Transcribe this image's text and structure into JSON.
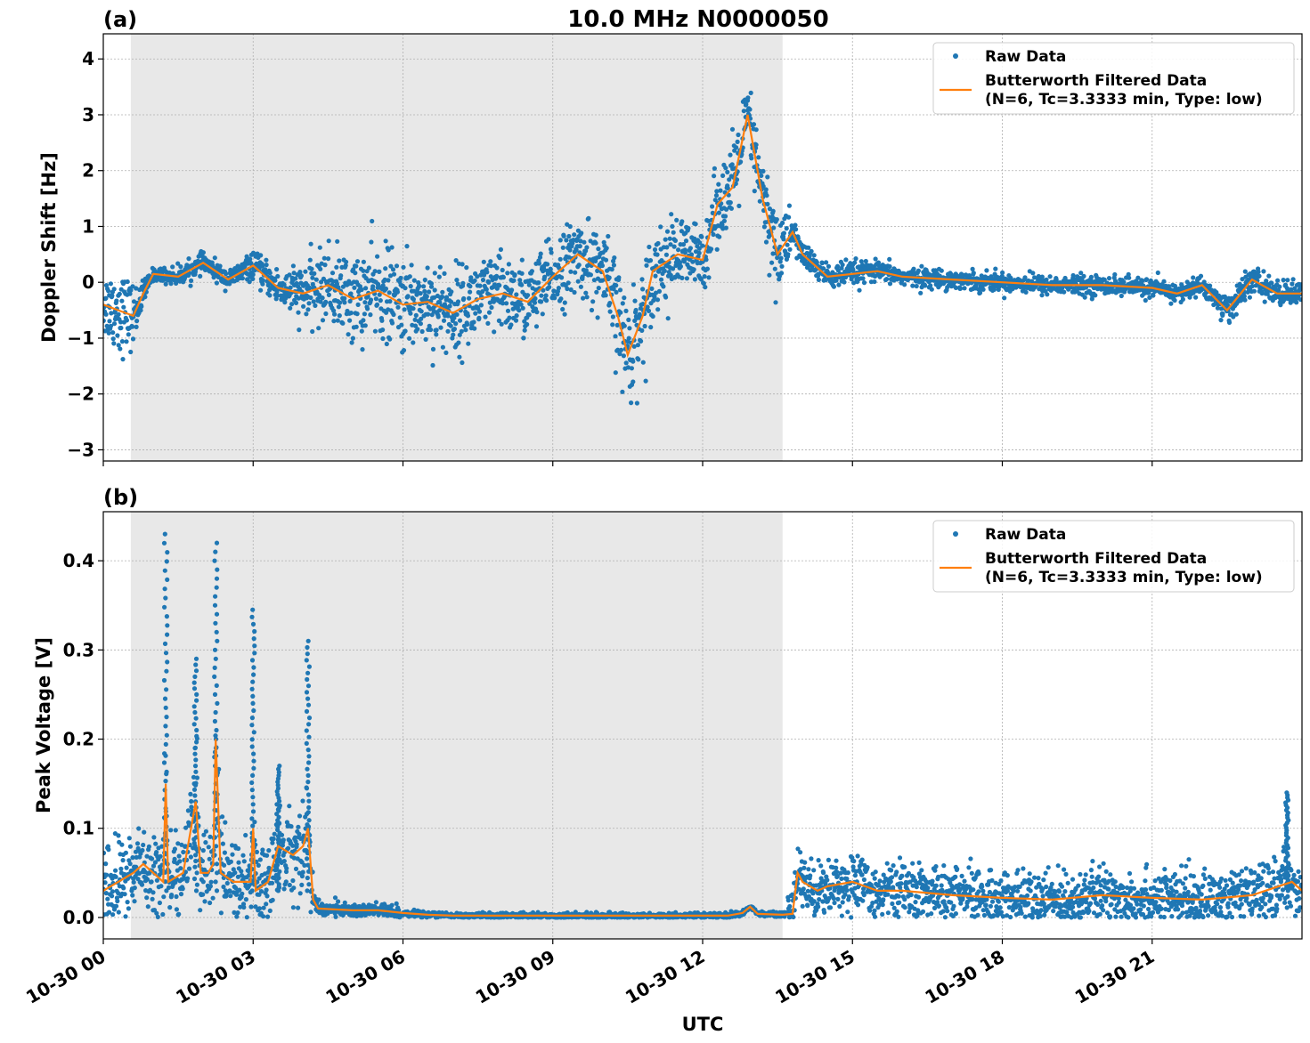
{
  "figure": {
    "title": "10.0 MHz N0000050",
    "xlabel": "UTC",
    "x_tick_labels": [
      "10-30 00",
      "10-30 03",
      "10-30 06",
      "10-30 09",
      "10-30 12",
      "10-30 15",
      "10-30 18",
      "10-30 21"
    ]
  },
  "colors": {
    "raw": "#1f77b4",
    "filtered": "#ff7f0e",
    "shade": "#e8e8e8",
    "grid": "#b0b0b0"
  },
  "chart_data": [
    {
      "type": "scatter",
      "panel_label": "(a)",
      "ylabel": "Doppler Shift [Hz]",
      "x_unit": "hours UTC since 10-30 00:00",
      "xlim": [
        0,
        24
      ],
      "ylim": [
        -3.2,
        4.45
      ],
      "y_ticks": [
        -3,
        -2,
        -1,
        0,
        1,
        2,
        3,
        4
      ],
      "y_tick_labels": [
        "−3",
        "−2",
        "−1",
        "0",
        "1",
        "2",
        "3",
        "4"
      ],
      "shaded_interval_hours": [
        0.55,
        13.6
      ],
      "legend": {
        "placement": "top-right",
        "raw_label": "Raw Data",
        "filtered_label_line1": "Butterworth Filtered Data",
        "filtered_label_line2": "(N=6, Tc=3.3333 min, Type: low)"
      },
      "series": [
        {
          "name": "Butterworth Filtered Data",
          "kind": "line",
          "x": [
            0.0,
            0.3,
            0.6,
            0.8,
            1.0,
            1.5,
            2.0,
            2.5,
            3.0,
            3.5,
            4.0,
            4.5,
            5.0,
            5.5,
            6.0,
            6.5,
            7.0,
            7.5,
            8.0,
            8.5,
            9.0,
            9.5,
            10.0,
            10.3,
            10.5,
            10.8,
            11.0,
            11.5,
            12.0,
            12.3,
            12.6,
            12.9,
            13.2,
            13.5,
            13.8,
            14.0,
            14.5,
            15.0,
            15.5,
            16.0,
            17.0,
            18.0,
            19.0,
            20.0,
            21.0,
            21.5,
            22.0,
            22.5,
            23.0,
            23.5,
            24.0
          ],
          "y": [
            -0.4,
            -0.5,
            -0.6,
            -0.2,
            0.15,
            0.1,
            0.35,
            0.05,
            0.3,
            -0.1,
            -0.2,
            -0.05,
            -0.3,
            -0.15,
            -0.4,
            -0.35,
            -0.55,
            -0.3,
            -0.2,
            -0.35,
            0.1,
            0.5,
            0.2,
            -0.6,
            -1.3,
            -0.6,
            0.2,
            0.5,
            0.4,
            1.4,
            1.7,
            3.0,
            1.5,
            0.5,
            0.9,
            0.5,
            0.1,
            0.15,
            0.2,
            0.1,
            0.05,
            0.0,
            -0.05,
            -0.05,
            -0.1,
            -0.2,
            -0.05,
            -0.5,
            0.05,
            -0.2,
            -0.2
          ]
        },
        {
          "name": "Raw Data",
          "kind": "scatter",
          "envelope_x": [
            0.0,
            0.3,
            0.6,
            0.8,
            1.0,
            1.5,
            2.0,
            2.5,
            3.0,
            3.5,
            4.0,
            4.5,
            5.0,
            5.5,
            6.0,
            6.5,
            7.0,
            7.5,
            8.0,
            8.5,
            9.0,
            9.5,
            10.0,
            10.3,
            10.5,
            10.8,
            11.0,
            11.5,
            12.0,
            12.3,
            12.6,
            12.9,
            13.2,
            13.5,
            13.8,
            14.0,
            14.5,
            15.0,
            15.5,
            16.0,
            17.0,
            18.0,
            19.0,
            20.0,
            21.0,
            21.5,
            22.0,
            22.5,
            23.0,
            23.5,
            24.0
          ],
          "envelope_spread": [
            0.5,
            0.7,
            0.5,
            0.2,
            0.1,
            0.15,
            0.15,
            0.15,
            0.2,
            0.3,
            0.45,
            0.6,
            0.7,
            0.75,
            0.75,
            0.7,
            0.7,
            0.65,
            0.65,
            0.6,
            0.6,
            0.6,
            0.7,
            0.8,
            0.9,
            0.8,
            0.7,
            0.6,
            0.55,
            0.6,
            0.7,
            0.6,
            0.6,
            0.8,
            0.3,
            0.2,
            0.2,
            0.2,
            0.15,
            0.15,
            0.15,
            0.15,
            0.15,
            0.15,
            0.15,
            0.15,
            0.15,
            0.25,
            0.2,
            0.2,
            0.2
          ]
        }
      ]
    },
    {
      "type": "scatter",
      "panel_label": "(b)",
      "ylabel": "Peak Voltage [V]",
      "x_unit": "hours UTC since 10-30 00:00",
      "xlim": [
        0,
        24
      ],
      "ylim": [
        -0.024,
        0.455
      ],
      "y_ticks": [
        0.0,
        0.1,
        0.2,
        0.3,
        0.4
      ],
      "y_tick_labels": [
        "0.0",
        "0.1",
        "0.2",
        "0.3",
        "0.4"
      ],
      "shaded_interval_hours": [
        0.55,
        13.6
      ],
      "legend": {
        "placement": "top-right",
        "raw_label": "Raw Data",
        "filtered_label_line1": "Butterworth Filtered Data",
        "filtered_label_line2": "(N=6, Tc=3.3333 min, Type: low)"
      },
      "series": [
        {
          "name": "Butterworth Filtered Data",
          "kind": "line",
          "x": [
            0.0,
            0.3,
            0.6,
            0.8,
            1.0,
            1.2,
            1.25,
            1.3,
            1.6,
            1.85,
            1.95,
            2.1,
            2.2,
            2.25,
            2.35,
            2.6,
            2.95,
            3.0,
            3.05,
            3.3,
            3.5,
            3.8,
            4.0,
            4.1,
            4.2,
            4.3,
            5.0,
            5.5,
            6.0,
            6.5,
            7.0,
            9.0,
            11.0,
            12.5,
            12.8,
            12.95,
            13.1,
            13.6,
            13.8,
            13.9,
            14.0,
            14.3,
            14.5,
            15.0,
            15.5,
            16.0,
            17.0,
            18.0,
            19.0,
            20.0,
            21.0,
            22.0,
            23.0,
            23.8,
            24.0
          ],
          "y": [
            0.03,
            0.04,
            0.05,
            0.06,
            0.05,
            0.04,
            0.15,
            0.04,
            0.05,
            0.13,
            0.05,
            0.05,
            0.06,
            0.2,
            0.05,
            0.04,
            0.04,
            0.1,
            0.03,
            0.04,
            0.08,
            0.07,
            0.08,
            0.1,
            0.02,
            0.01,
            0.008,
            0.008,
            0.005,
            0.003,
            0.002,
            0.002,
            0.002,
            0.002,
            0.005,
            0.012,
            0.004,
            0.003,
            0.004,
            0.05,
            0.04,
            0.03,
            0.035,
            0.04,
            0.03,
            0.03,
            0.025,
            0.022,
            0.02,
            0.025,
            0.022,
            0.02,
            0.025,
            0.04,
            0.03
          ]
        },
        {
          "name": "Raw Data",
          "kind": "scatter",
          "spike_peaks_x": [
            1.25,
            1.85,
            2.25,
            3.0,
            3.5,
            4.1,
            23.7
          ],
          "spike_peaks_y": [
            0.43,
            0.29,
            0.42,
            0.345,
            0.17,
            0.31,
            0.14
          ]
        }
      ]
    }
  ]
}
